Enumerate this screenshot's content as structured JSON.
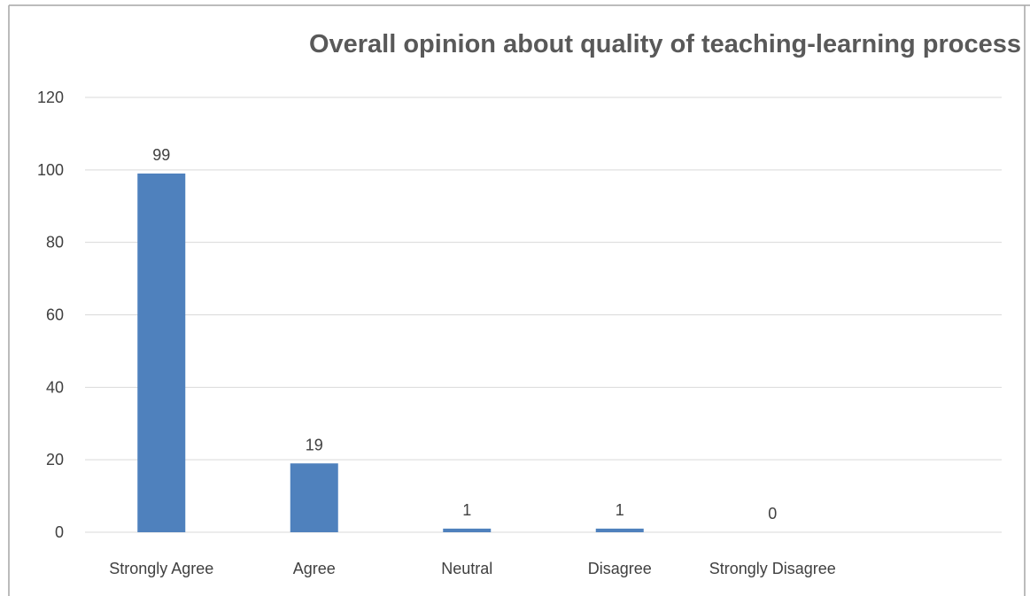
{
  "chart_data": {
    "type": "bar",
    "title": "Overall opinion about quality of teaching-learning process",
    "categories": [
      "Strongly Agree",
      "Agree",
      "Neutral",
      "Disagree",
      "Strongly Disagree"
    ],
    "values": [
      99,
      19,
      1,
      1,
      0
    ],
    "data_labels": [
      "99",
      "19",
      "1",
      "1",
      "0"
    ],
    "y_ticks": [
      "0",
      "20",
      "40",
      "60",
      "80",
      "100",
      "120"
    ],
    "ylim": [
      0,
      120
    ],
    "xlabel": "",
    "ylabel": "",
    "grid": true,
    "legend": "none",
    "bar_color": "#4F81BD",
    "gridline_color": "#D9D9D9",
    "border_color": "#A6A6A6"
  }
}
